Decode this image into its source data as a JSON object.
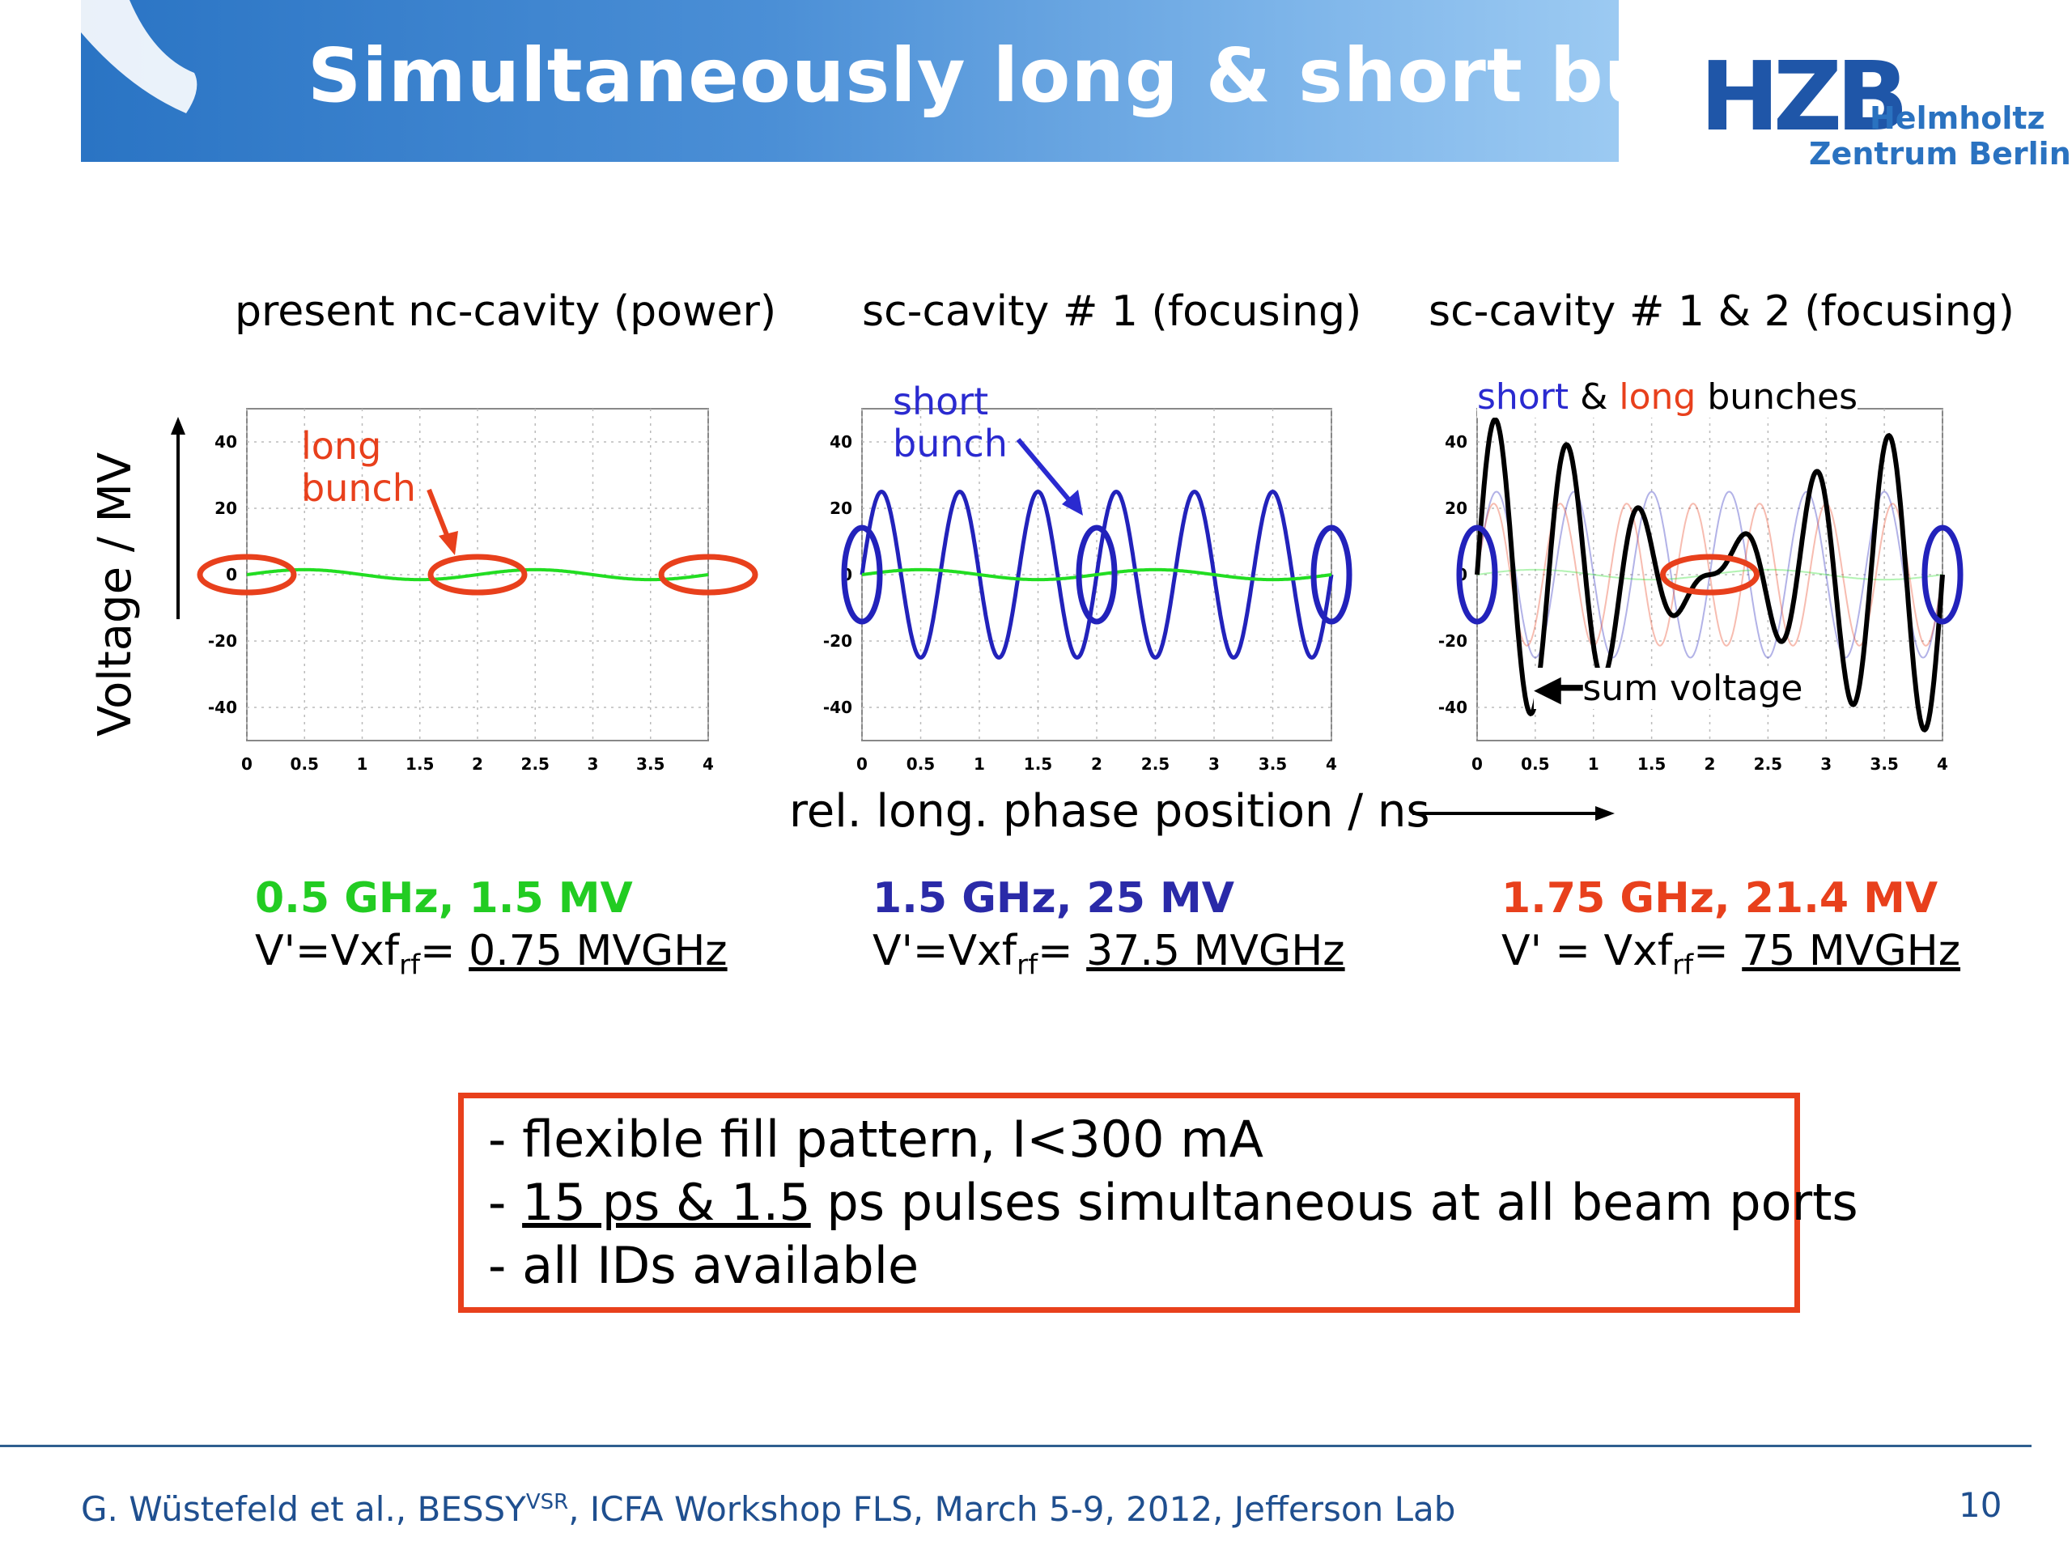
{
  "slide": {
    "title": "Simultaneously long & short bunches",
    "logo": {
      "hzb": "HZB",
      "line1": "Helmholtz",
      "line2": "Zentrum Berlin"
    },
    "y_axis_label": "Voltage / MV",
    "x_axis_label": "rel. long. phase position / ns",
    "footer": {
      "text": "G. Wüstefeld et al., BESSY",
      "sup": "VSR",
      "text_after": ", ICFA Workshop FLS, March 5-9, 2012, Jefferson Lab"
    },
    "page_number": "10"
  },
  "panels": [
    {
      "title": "present nc-cavity (power)",
      "freq_line": "0.5 GHz, 1.5 MV",
      "formula_prefix": "V'=Vxf",
      "formula_sub": "rf",
      "formula_eq": "= ",
      "formula_value": "0.75 MVGHz"
    },
    {
      "title": "sc-cavity # 1 (focusing)",
      "freq_line": "1.5 GHz, 25 MV",
      "formula_prefix": "V'=Vxf",
      "formula_sub": "rf",
      "formula_eq": "= ",
      "formula_value": "37.5 MVGHz"
    },
    {
      "title": "sc-cavity # 1 & 2 (focusing)",
      "freq_line": "1.75 GHz, 21.4 MV",
      "formula_prefix": "V' = Vxf",
      "formula_sub": "rf",
      "formula_eq": "= ",
      "formula_value": "75 MVGHz"
    }
  ],
  "annotations": {
    "long_bunch": [
      "long",
      "bunch"
    ],
    "short_bunch": [
      "short",
      "bunch"
    ],
    "short_word": "short",
    "amp_word": " & ",
    "long_word": "long",
    "bunches_word": " bunches",
    "sum_voltage": "sum voltage"
  },
  "summary": {
    "line1": "- flexible fill pattern, I<300 mA",
    "line2_prefix": "- ",
    "line2_u1": "15 ps & 1.5",
    "line2_rest": " ps pulses simultaneous at all beam ports",
    "line3": "- all IDs available"
  },
  "colors": {
    "green": "#22dd22",
    "blue": "#2222bb",
    "red": "#e8401c",
    "black": "#000000"
  },
  "chart_data": [
    {
      "type": "line",
      "xlim": [
        0,
        4
      ],
      "ylim": [
        -50,
        50
      ],
      "x_ticks": [
        "0",
        "0.5",
        "1",
        "1.5",
        "2",
        "2.5",
        "3",
        "3.5",
        "4"
      ],
      "y_ticks": [
        "40",
        "20",
        "0",
        "-20",
        "-40"
      ],
      "grid": true,
      "series": [
        {
          "color": "green",
          "amplitude_MV": 1.5,
          "freq_GHz": 0.5
        }
      ],
      "markers": [
        {
          "x": 0,
          "y": 0,
          "color": "red"
        },
        {
          "x": 2,
          "y": 0,
          "color": "red"
        },
        {
          "x": 4,
          "y": 0,
          "color": "red"
        }
      ]
    },
    {
      "type": "line",
      "xlim": [
        0,
        4
      ],
      "ylim": [
        -50,
        50
      ],
      "x_ticks": [
        "0",
        "0.5",
        "1",
        "1.5",
        "2",
        "2.5",
        "3",
        "3.5",
        "4"
      ],
      "y_ticks": [
        "40",
        "20",
        "0",
        "-20",
        "-40"
      ],
      "grid": true,
      "series": [
        {
          "color": "blue",
          "amplitude_MV": 25,
          "freq_GHz": 1.5
        },
        {
          "color": "green",
          "amplitude_MV": 1.5,
          "freq_GHz": 0.5
        }
      ],
      "markers": [
        {
          "x": 0,
          "y": 0,
          "color": "blue"
        },
        {
          "x": 2,
          "y": 0,
          "color": "blue"
        },
        {
          "x": 4,
          "y": 0,
          "color": "blue"
        }
      ]
    },
    {
      "type": "line",
      "xlim": [
        0,
        4
      ],
      "ylim": [
        -50,
        50
      ],
      "x_ticks": [
        "0",
        "0.5",
        "1",
        "1.5",
        "2",
        "2.5",
        "3",
        "3.5",
        "4"
      ],
      "y_ticks": [
        "40",
        "20",
        "0",
        "-20",
        "-40"
      ],
      "grid": true,
      "series": [
        {
          "color": "blue",
          "amplitude_MV": 25,
          "freq_GHz": 1.5,
          "faint": true
        },
        {
          "color": "red",
          "amplitude_MV": 21.4,
          "freq_GHz": 1.75,
          "faint": true
        },
        {
          "color": "green",
          "amplitude_MV": 1.5,
          "freq_GHz": 0.5,
          "faint": true
        },
        {
          "color": "black",
          "sum": true
        }
      ],
      "markers": [
        {
          "x": 0,
          "y": 0,
          "color": "blue"
        },
        {
          "x": 2,
          "y": 0,
          "color": "red"
        },
        {
          "x": 4,
          "y": 0,
          "color": "blue"
        }
      ]
    }
  ]
}
